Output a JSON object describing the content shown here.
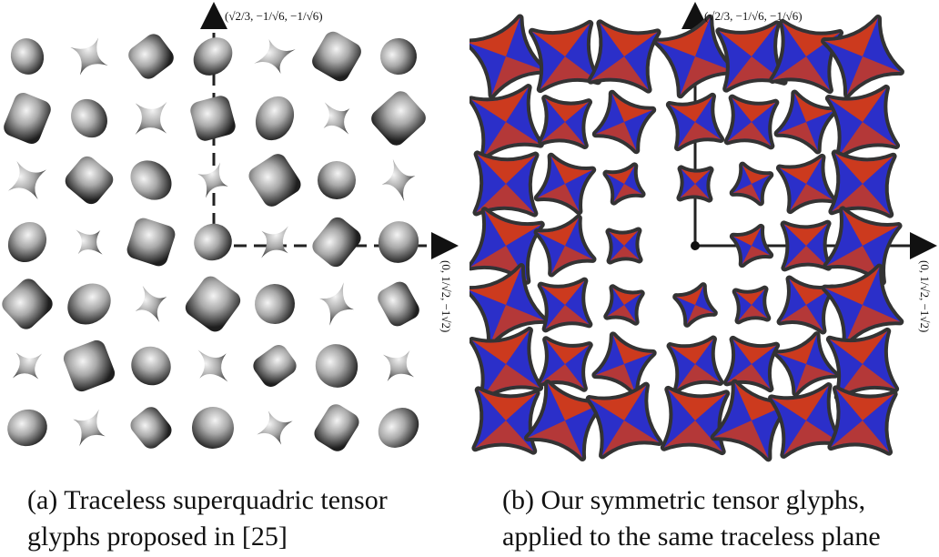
{
  "panel_a": {
    "caption_line1": "(a) Traceless superquadric tensor",
    "caption_line2": "glyphs proposed in [25]",
    "vertical_axis_label": "(√2/3, −1/√6, −1/√6)",
    "horizontal_axis_label": "(0, 1/√2, −1√2)",
    "glyph_style": "gray superquadric",
    "rows": 7,
    "cols": 7
  },
  "panel_b": {
    "caption_line1": "(b) Our symmetric tensor glyphs,",
    "caption_line2": "applied to the same traceless plane",
    "vertical_axis_label": "(√2/3, −1/√6, −1/√6)",
    "horizontal_axis_label": "(0, 1/√2, −1√2)",
    "glyph_colors": {
      "positive": "#cc3a1e",
      "negative": "#2b2fc9",
      "outline": "#333333"
    },
    "rows": 7,
    "cols": 7
  }
}
